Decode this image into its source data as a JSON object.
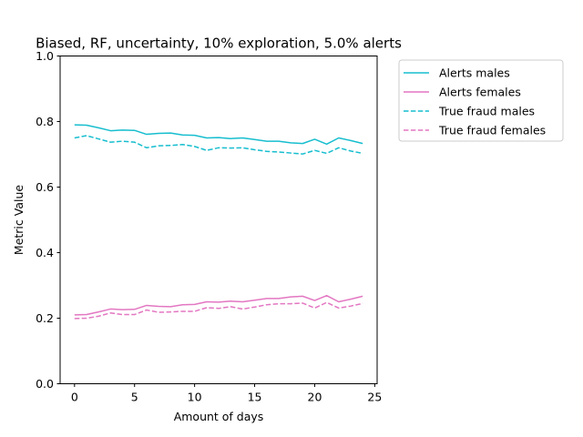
{
  "chart_data": {
    "type": "line",
    "title": "Biased, RF, uncertainty, 10% exploration, 5.0% alerts",
    "xlabel": "Amount of days",
    "ylabel": "Metric Value",
    "xlim": [
      -1.2,
      25.2
    ],
    "ylim": [
      0.0,
      1.0
    ],
    "xticks": [
      0,
      5,
      10,
      15,
      20,
      25
    ],
    "yticks": [
      0.0,
      0.2,
      0.4,
      0.6,
      0.8,
      1.0
    ],
    "xtick_labels": [
      "0",
      "5",
      "10",
      "15",
      "20",
      "25"
    ],
    "ytick_labels": [
      "0.0",
      "0.2",
      "0.4",
      "0.6",
      "0.8",
      "1.0"
    ],
    "grid": false,
    "legend_position": "outside-right-top",
    "x": [
      0,
      1,
      2,
      3,
      4,
      5,
      6,
      7,
      8,
      9,
      10,
      11,
      12,
      13,
      14,
      15,
      16,
      17,
      18,
      19,
      20,
      21,
      22,
      23,
      24
    ],
    "series": [
      {
        "name": "Alerts males",
        "color": "#17becf",
        "dash": "solid",
        "values": [
          0.79,
          0.789,
          0.781,
          0.772,
          0.774,
          0.773,
          0.761,
          0.764,
          0.765,
          0.759,
          0.758,
          0.75,
          0.751,
          0.748,
          0.75,
          0.745,
          0.74,
          0.74,
          0.735,
          0.733,
          0.746,
          0.731,
          0.75,
          0.742,
          0.733
        ]
      },
      {
        "name": "Alerts females",
        "color": "#e377c2",
        "dash": "solid",
        "values": [
          0.21,
          0.211,
          0.219,
          0.228,
          0.226,
          0.227,
          0.239,
          0.236,
          0.235,
          0.241,
          0.242,
          0.25,
          0.249,
          0.252,
          0.25,
          0.255,
          0.26,
          0.26,
          0.265,
          0.267,
          0.254,
          0.269,
          0.25,
          0.258,
          0.267
        ]
      },
      {
        "name": "True fraud males",
        "color": "#17becf",
        "dash": "dashed",
        "values": [
          0.75,
          0.757,
          0.747,
          0.737,
          0.74,
          0.737,
          0.72,
          0.726,
          0.727,
          0.73,
          0.724,
          0.712,
          0.72,
          0.719,
          0.72,
          0.714,
          0.709,
          0.707,
          0.704,
          0.701,
          0.712,
          0.703,
          0.72,
          0.71,
          0.703
        ]
      },
      {
        "name": "True fraud females",
        "color": "#e377c2",
        "dash": "dashed",
        "values": [
          0.199,
          0.2,
          0.206,
          0.216,
          0.211,
          0.211,
          0.225,
          0.218,
          0.219,
          0.221,
          0.221,
          0.232,
          0.23,
          0.235,
          0.228,
          0.234,
          0.241,
          0.244,
          0.244,
          0.246,
          0.231,
          0.248,
          0.231,
          0.237,
          0.245
        ]
      }
    ]
  }
}
